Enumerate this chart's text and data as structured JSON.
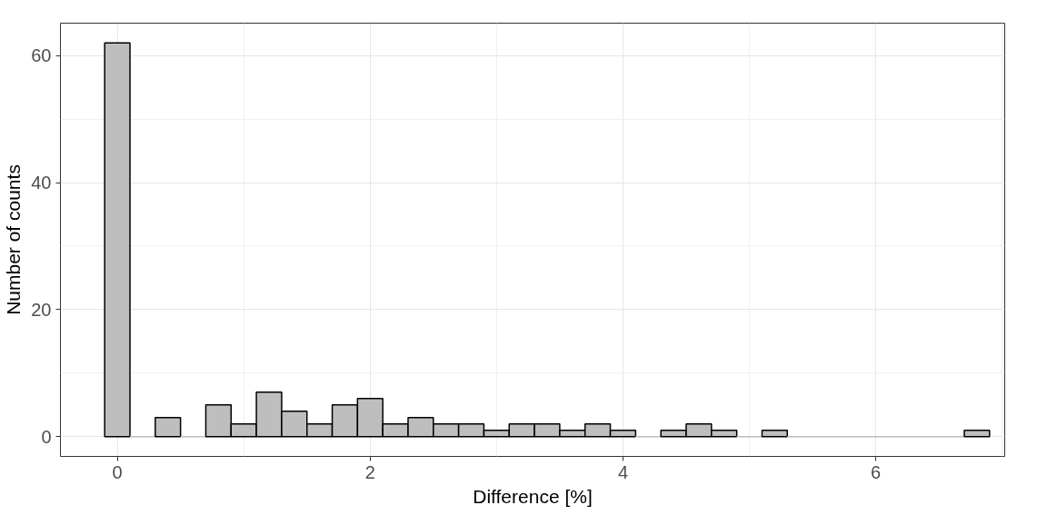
{
  "chart_data": {
    "type": "histogram",
    "xlabel": "Difference [%]",
    "ylabel": "Number of counts",
    "bins": [
      -0.1,
      0.1,
      0.3,
      0.5,
      0.7,
      0.9,
      1.1,
      1.3,
      1.5,
      1.7,
      1.9,
      2.1,
      2.3,
      2.5,
      2.7,
      2.9,
      3.1,
      3.3,
      3.5,
      3.7,
      3.9,
      4.1,
      4.3,
      4.5,
      4.7,
      4.9,
      5.1,
      5.3,
      5.5,
      5.7,
      5.9,
      6.1,
      6.3,
      6.5,
      6.7,
      6.9
    ],
    "values": [
      62,
      0,
      3,
      0,
      5,
      2,
      7,
      4,
      2,
      5,
      6,
      2,
      3,
      2,
      2,
      1,
      2,
      2,
      1,
      2,
      1,
      0,
      1,
      2,
      1,
      0,
      1,
      0,
      0,
      0,
      0,
      0,
      0,
      0,
      1
    ],
    "color": "#bebebe",
    "xlim": [
      -0.45,
      7.02
    ],
    "ylim": [
      -3.1,
      65.1
    ],
    "xticks": [
      0,
      2,
      4,
      6
    ],
    "yticks": [
      0,
      20,
      40,
      60
    ],
    "grid": true
  }
}
